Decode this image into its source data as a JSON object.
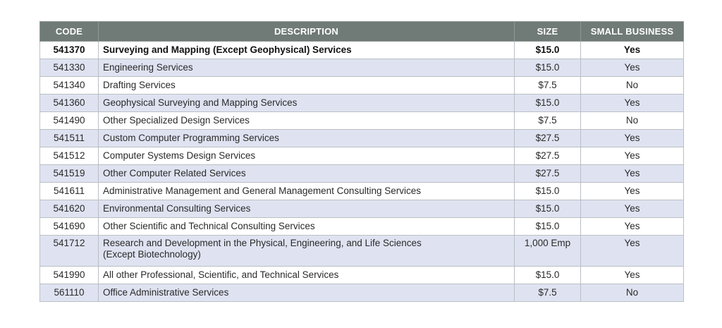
{
  "headers": {
    "code": "CODE",
    "description": "DESCRIPTION",
    "size": "SIZE",
    "small_business": "SMALL BUSINESS"
  },
  "rows": [
    {
      "code": "541370",
      "description": "Surveying and Mapping (Except Geophysical) Services",
      "size": "$15.0",
      "small_business": "Yes"
    },
    {
      "code": "541330",
      "description": "Engineering Services",
      "size": "$15.0",
      "small_business": "Yes"
    },
    {
      "code": "541340",
      "description": "Drafting Services",
      "size": "$7.5",
      "small_business": "No"
    },
    {
      "code": "541360",
      "description": "Geophysical Surveying and Mapping Services",
      "size": "$15.0",
      "small_business": "Yes"
    },
    {
      "code": "541490",
      "description": "Other Specialized Design Services",
      "size": "$7.5",
      "small_business": "No"
    },
    {
      "code": "541511",
      "description": "Custom Computer Programming Services",
      "size": "$27.5",
      "small_business": "Yes"
    },
    {
      "code": "541512",
      "description": "Computer Systems Design Services",
      "size": "$27.5",
      "small_business": "Yes"
    },
    {
      "code": "541519",
      "description": "Other Computer Related Services",
      "size": "$27.5",
      "small_business": "Yes"
    },
    {
      "code": "541611",
      "description": "Administrative Management and General Management Consulting Services",
      "size": "$15.0",
      "small_business": "Yes"
    },
    {
      "code": "541620",
      "description": "Environmental Consulting Services",
      "size": "$15.0",
      "small_business": "Yes"
    },
    {
      "code": "541690",
      "description": "Other Scientific and Technical Consulting Services",
      "size": "$15.0",
      "small_business": "Yes"
    },
    {
      "code": "541712",
      "description": "Research and Development in the Physical, Engineering, and Life Sciences",
      "description_line2": "(Except Biotechnology)",
      "size": "1,000 Emp",
      "small_business": "Yes"
    },
    {
      "code": "541990",
      "description": "All other Professional, Scientific, and Technical Services",
      "size": "$15.0",
      "small_business": "Yes"
    },
    {
      "code": "561110",
      "description": "Office Administrative Services",
      "size": "$7.5",
      "small_business": "No"
    }
  ]
}
